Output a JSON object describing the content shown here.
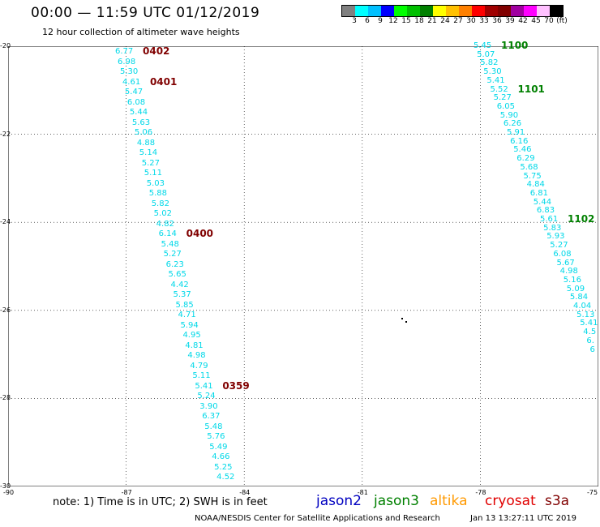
{
  "header": {
    "title": "00:00 — 11:59 UTC 01/12/2019",
    "subtitle": "12 hour collection of altimeter wave heights"
  },
  "colorbar": {
    "colors": [
      "#808080",
      "#00ffff",
      "#00c0ff",
      "#0000ff",
      "#00ff00",
      "#00c000",
      "#008000",
      "#ffff00",
      "#ffc000",
      "#ff8000",
      "#ff0000",
      "#a00000",
      "#800000",
      "#a000a0",
      "#ff00ff",
      "#ffc0ff",
      "#000000"
    ],
    "ticks": [
      "3",
      "6",
      "9",
      "12",
      "15",
      "18",
      "21",
      "24",
      "27",
      "30",
      "33",
      "36",
      "39",
      "42",
      "45",
      "70",
      "(ft)"
    ]
  },
  "map": {
    "lat_ticks": [
      "-20",
      "-22",
      "-24",
      "-26",
      "-28",
      "-30"
    ],
    "lon_ticks": [
      "-90",
      "-87",
      "-84",
      "-81",
      "-78",
      "-75"
    ],
    "lat_range": [
      -30,
      -20
    ],
    "lon_range": [
      -90,
      -75
    ],
    "value_color": "#00d8e8",
    "track_west": {
      "values": [
        "6.77",
        "6.98",
        "5.30",
        "4.61",
        "5.47",
        "6.08",
        "5.44",
        "5.63",
        "5.06",
        "4.88",
        "5.14",
        "5.27",
        "5.11",
        "5.03",
        "5.88",
        "5.82",
        "5.02",
        "4.82",
        "6.14",
        "5.48",
        "5.27",
        "6.23",
        "5.65",
        "4.42",
        "5.37",
        "5.85",
        "4.71",
        "5.94",
        "4.95",
        "4.81",
        "4.98",
        "4.79",
        "5.11",
        "5.41",
        "5.24",
        "3.90",
        "6.37",
        "5.48",
        "5.76",
        "5.49",
        "4.66",
        "5.25",
        "4.52"
      ],
      "labels": [
        {
          "text": "0402",
          "index": 0,
          "color": "#800000"
        },
        {
          "text": "0401",
          "index": 3,
          "color": "#800000"
        },
        {
          "text": "0400",
          "index": 18,
          "color": "#800000"
        },
        {
          "text": "0359",
          "index": 33,
          "color": "#800000"
        }
      ]
    },
    "track_east": {
      "values": [
        "5.45",
        "5.07",
        "5.82",
        "5.30",
        "5.41",
        "5.52",
        "5.27",
        "6.05",
        "5.90",
        "6.26",
        "5.91",
        "6.16",
        "5.46",
        "6.29",
        "5.68",
        "5.75",
        "4.84",
        "6.81",
        "5.44",
        "6.83",
        "5.61",
        "5.83",
        "5.93",
        "5.27",
        "6.08",
        "5.67",
        "4.98",
        "5.16",
        "5.09",
        "5.84",
        "4.04",
        "5.13",
        "5.41",
        "4.5",
        "6.",
        "6"
      ],
      "labels": [
        {
          "text": "1100",
          "index": 0,
          "color": "#008000"
        },
        {
          "text": "1101",
          "index": 5,
          "color": "#008000"
        },
        {
          "text": "1102",
          "index": 20,
          "color": "#008000"
        }
      ]
    }
  },
  "footer": {
    "note": "note:  1) Time is in UTC;  2) SWH is in feet",
    "satellites": [
      {
        "name": "jason2",
        "color": "#0000c0"
      },
      {
        "name": "jason3",
        "color": "#008000"
      },
      {
        "name": "altika",
        "color": "#ff9900"
      },
      {
        "name": "cryosat",
        "color": "#e00000"
      },
      {
        "name": "s3a",
        "color": "#800000"
      }
    ],
    "credit": "NOAA/NESDIS Center for Satellite Applications and Research",
    "timestamp": "Jan 13 13:27:11 UTC 2019"
  }
}
